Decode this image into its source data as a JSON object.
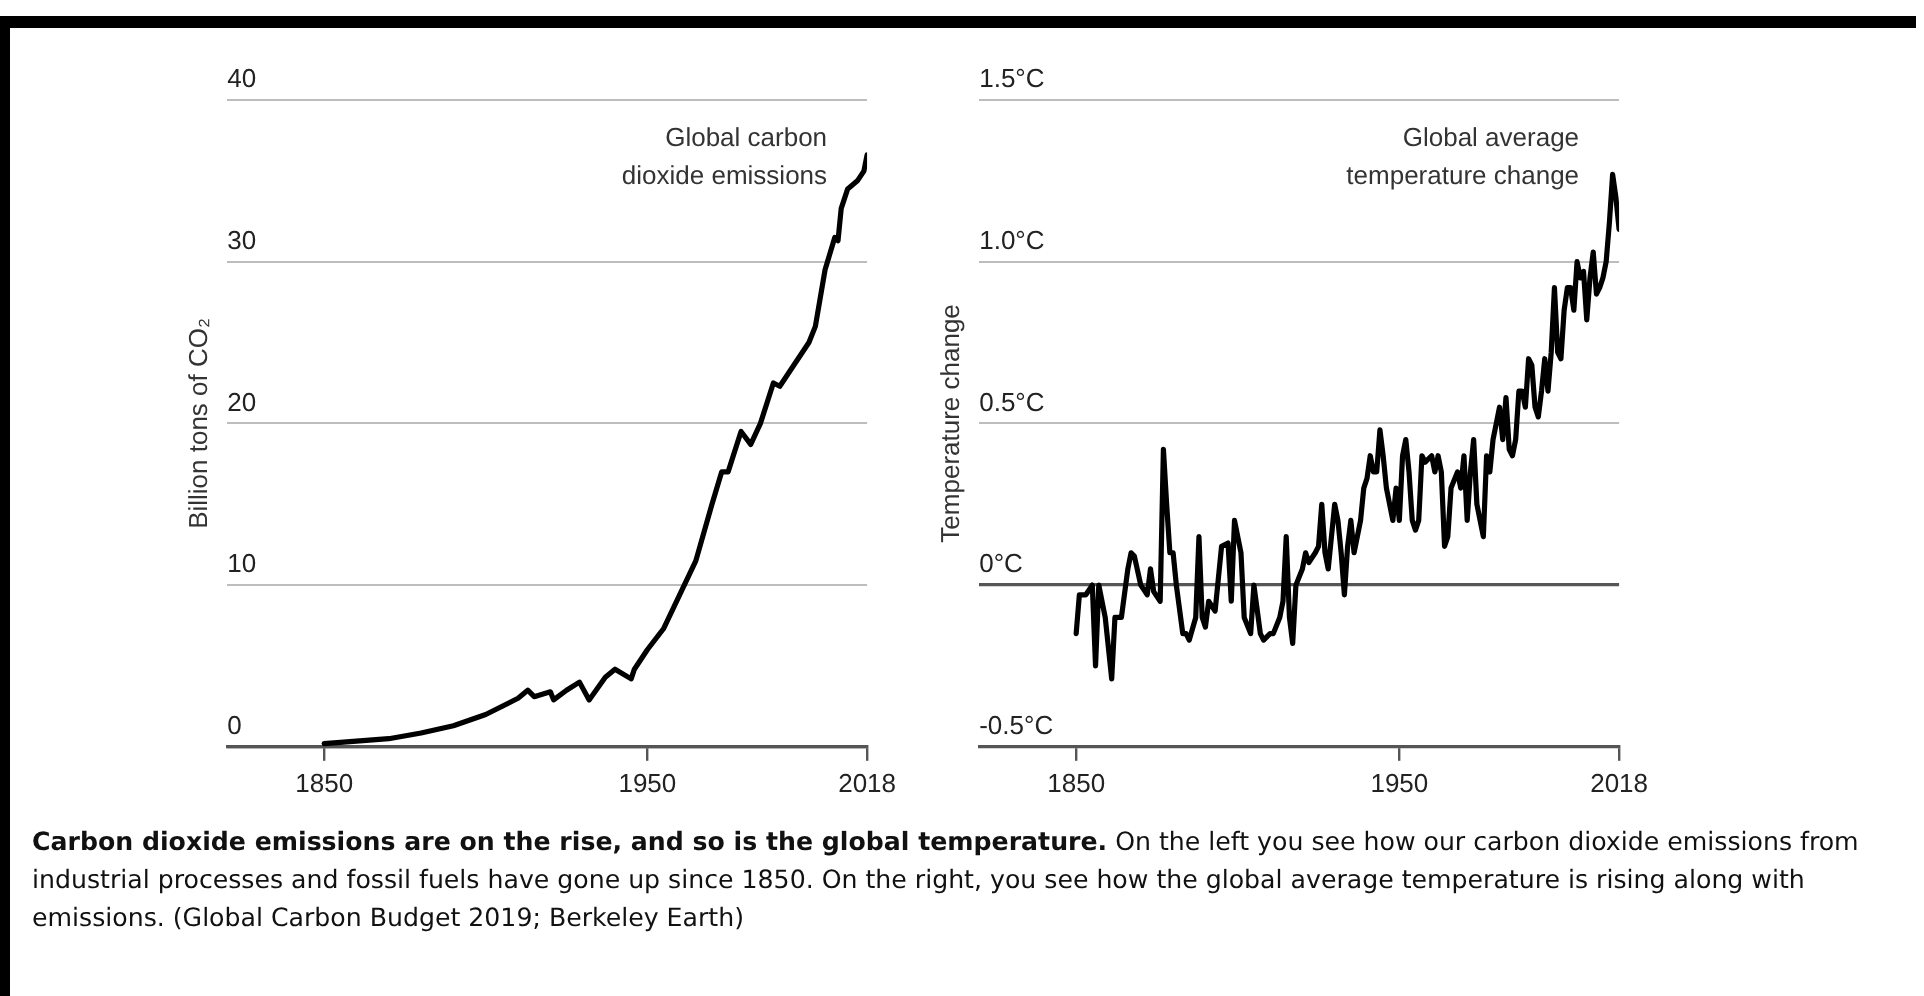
{
  "chart_data": [
    {
      "type": "line",
      "ylabel": "Billion tons of CO₂",
      "xlim": [
        1820,
        2018
      ],
      "xticks": [
        1850,
        1950,
        2018
      ],
      "ylim": [
        0,
        40
      ],
      "yticks": [
        0,
        10,
        20,
        30,
        40
      ],
      "grid": "y",
      "legend": false,
      "marker": "none",
      "line_style": "solid",
      "annotations": [
        "Carbon dioxide emissions are on the rise, and so is the global temperature.",
        "On the left you see how our carbon dioxide emissions from industrial processes and fossil fuels have gone up since 1850. On the right, you see how the global average temperature is rising along with emissions. (Global Carbon Budget 2019; Berkeley Earth)"
      ],
      "series": [
        {
          "name": "Global carbon dioxide emissions",
          "color": "#000000",
          "x": [
            1850,
            1860,
            1870,
            1880,
            1890,
            1900,
            1910,
            1913,
            1915,
            1920,
            1921,
            1925,
            1929,
            1932,
            1937,
            1940,
            1945,
            1946,
            1950,
            1955,
            1960,
            1965,
            1970,
            1973,
            1975,
            1979,
            1982,
            1985,
            1989,
            1991,
            1995,
            2000,
            2002,
            2005,
            2008,
            2009,
            2010,
            2012,
            2015,
            2017,
            2018
          ],
          "values": [
            0.2,
            0.35,
            0.5,
            0.85,
            1.3,
            2.0,
            3.0,
            3.5,
            3.1,
            3.4,
            2.9,
            3.5,
            4.0,
            2.9,
            4.3,
            4.8,
            4.2,
            4.8,
            6.0,
            7.3,
            9.4,
            11.5,
            15.0,
            17.0,
            17.0,
            19.5,
            18.7,
            20.0,
            22.5,
            22.3,
            23.5,
            25.0,
            26.0,
            29.5,
            31.5,
            31.3,
            33.3,
            34.5,
            35.0,
            35.6,
            36.6
          ]
        }
      ]
    },
    {
      "type": "line",
      "ylabel": "Temperature change",
      "xlim": [
        1820,
        2018
      ],
      "xticks": [
        1850,
        1950,
        2018
      ],
      "ylim": [
        -0.5,
        1.5
      ],
      "yticks": [
        {
          "value": -0.5,
          "label": "-0.5°C"
        },
        {
          "value": 0,
          "label": "0°C"
        },
        {
          "value": 0.5,
          "label": "0.5°C"
        },
        {
          "value": 1.0,
          "label": "1.0°C"
        },
        {
          "value": 1.5,
          "label": "1.5°C"
        }
      ],
      "grid": "y",
      "legend": false,
      "marker": "none",
      "line_style": "solid",
      "series": [
        {
          "name": "Global average temperature change",
          "color": "#000000",
          "x": [
            1850,
            1851,
            1853,
            1855,
            1856,
            1857,
            1859,
            1861,
            1862,
            1864,
            1866,
            1867,
            1868,
            1870,
            1872,
            1873,
            1874,
            1876,
            1877,
            1878,
            1879,
            1880,
            1881,
            1883,
            1884,
            1885,
            1887,
            1888,
            1889,
            1890,
            1891,
            1893,
            1895,
            1897,
            1898,
            1899,
            1901,
            1902,
            1904,
            1905,
            1907,
            1908,
            1910,
            1911,
            1913,
            1914,
            1915,
            1916,
            1917,
            1918,
            1920,
            1921,
            1922,
            1924,
            1925,
            1926,
            1927,
            1928,
            1930,
            1931,
            1932,
            1933,
            1934,
            1935,
            1936,
            1938,
            1939,
            1940,
            1941,
            1942,
            1943,
            1944,
            1945,
            1946,
            1948,
            1949,
            1950,
            1951,
            1952,
            1953,
            1954,
            1955,
            1956,
            1957,
            1958,
            1960,
            1961,
            1962,
            1963,
            1964,
            1965,
            1966,
            1968,
            1969,
            1970,
            1971,
            1972,
            1973,
            1974,
            1975,
            1976,
            1977,
            1978,
            1979,
            1980,
            1981,
            1982,
            1983,
            1984,
            1985,
            1986,
            1987,
            1988,
            1989,
            1990,
            1991,
            1992,
            1993,
            1994,
            1995,
            1996,
            1997,
            1998,
            1999,
            2000,
            2001,
            2002,
            2003,
            2004,
            2005,
            2006,
            2007,
            2008,
            2009,
            2010,
            2011,
            2012,
            2013,
            2014,
            2015,
            2016,
            2017,
            2018
          ],
          "values": [
            -0.15,
            -0.03,
            -0.03,
            0.0,
            -0.25,
            0.0,
            -0.1,
            -0.29,
            -0.1,
            -0.1,
            0.05,
            0.1,
            0.09,
            0.0,
            -0.03,
            0.05,
            -0.02,
            -0.05,
            0.42,
            0.25,
            0.1,
            0.1,
            0.0,
            -0.15,
            -0.15,
            -0.17,
            -0.1,
            0.15,
            -0.1,
            -0.13,
            -0.05,
            -0.08,
            0.12,
            0.13,
            -0.05,
            0.2,
            0.1,
            -0.1,
            -0.15,
            0.0,
            -0.15,
            -0.17,
            -0.15,
            -0.15,
            -0.1,
            -0.05,
            0.15,
            -0.1,
            -0.18,
            0.0,
            0.05,
            0.1,
            0.07,
            0.1,
            0.12,
            0.25,
            0.1,
            0.05,
            0.25,
            0.2,
            0.1,
            -0.03,
            0.12,
            0.2,
            0.1,
            0.2,
            0.3,
            0.33,
            0.4,
            0.35,
            0.35,
            0.48,
            0.4,
            0.3,
            0.2,
            0.3,
            0.2,
            0.4,
            0.45,
            0.35,
            0.2,
            0.17,
            0.2,
            0.4,
            0.38,
            0.4,
            0.35,
            0.4,
            0.35,
            0.12,
            0.15,
            0.3,
            0.35,
            0.3,
            0.4,
            0.2,
            0.35,
            0.45,
            0.25,
            0.2,
            0.15,
            0.4,
            0.35,
            0.45,
            0.5,
            0.55,
            0.45,
            0.58,
            0.42,
            0.4,
            0.45,
            0.6,
            0.6,
            0.55,
            0.7,
            0.68,
            0.55,
            0.52,
            0.6,
            0.7,
            0.6,
            0.72,
            0.92,
            0.72,
            0.7,
            0.85,
            0.92,
            0.92,
            0.85,
            1.0,
            0.95,
            0.97,
            0.82,
            0.95,
            1.03,
            0.9,
            0.92,
            0.95,
            1.0,
            1.12,
            1.27,
            1.2,
            1.1
          ]
        }
      ]
    }
  ]
}
